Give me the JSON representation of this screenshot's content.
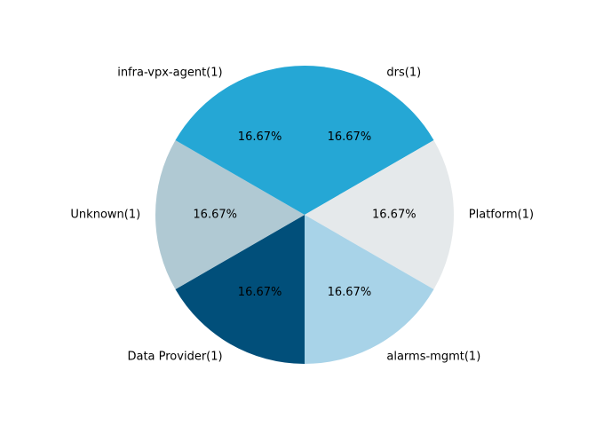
{
  "chart_data": {
    "type": "pie",
    "start_angle_deg": 90,
    "direction": "clockwise",
    "slices": [
      {
        "label": "drs(1)",
        "value": 1,
        "percent_label": "16.67%",
        "color": "#25a7d5"
      },
      {
        "label": "Platform(1)",
        "value": 1,
        "percent_label": "16.67%",
        "color": "#e5e9eb"
      },
      {
        "label": "alarms-mgmt(1)",
        "value": 1,
        "percent_label": "16.67%",
        "color": "#a8d3e8"
      },
      {
        "label": "Data Provider(1)",
        "value": 1,
        "percent_label": "16.67%",
        "color": "#014f7a"
      },
      {
        "label": "Unknown(1)",
        "value": 1,
        "percent_label": "16.67%",
        "color": "#b0c9d3"
      },
      {
        "label": "infra-vpx-agent(1)",
        "value": 1,
        "percent_label": "16.67%",
        "color": "#25a7d5"
      }
    ]
  }
}
